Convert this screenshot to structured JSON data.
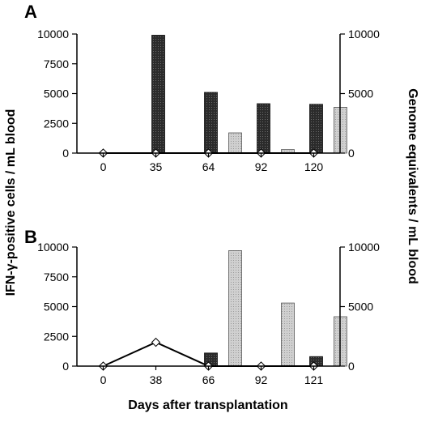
{
  "chart_data": [
    {
      "type": "bar",
      "panel_label": "A",
      "categories": [
        "0",
        "35",
        "64",
        "92",
        "120"
      ],
      "series": [
        {
          "values": [
            0,
            9900,
            5100,
            4150,
            4100
          ],
          "color": "#2b2b2b",
          "axis": "left"
        },
        {
          "values": [
            0,
            0,
            1700,
            300,
            3850
          ],
          "color": "#c8c8c8",
          "axis": "right"
        },
        {
          "kind": "line",
          "values": [
            0,
            0,
            0,
            0,
            0
          ],
          "axis": "right",
          "marker": "diamond"
        }
      ],
      "left_ticks": [
        "0",
        "2500",
        "5000",
        "7500",
        "10000"
      ],
      "right_ticks": [
        "0",
        "5000",
        "10000"
      ],
      "ylim": [
        0,
        10000
      ]
    },
    {
      "type": "bar",
      "panel_label": "B",
      "categories": [
        "0",
        "38",
        "66",
        "92",
        "121"
      ],
      "series": [
        {
          "values": [
            0,
            0,
            1100,
            0,
            800
          ],
          "color": "#2b2b2b",
          "axis": "left"
        },
        {
          "values": [
            0,
            0,
            9700,
            5300,
            4150
          ],
          "color": "#c8c8c8",
          "axis": "right"
        },
        {
          "kind": "line",
          "values": [
            0,
            2000,
            0,
            0,
            0
          ],
          "axis": "right",
          "marker": "diamond"
        }
      ],
      "left_ticks": [
        "0",
        "2500",
        "5000",
        "7500",
        "10000"
      ],
      "right_ticks": [
        "0",
        "5000",
        "10000"
      ],
      "ylim": [
        0,
        10000
      ]
    }
  ],
  "ylabel_left": "IFN-γ-positive cells / mL blood",
  "ylabel_right": "Genome equivalents / mL blood",
  "xlabel": "Days after transplantation"
}
